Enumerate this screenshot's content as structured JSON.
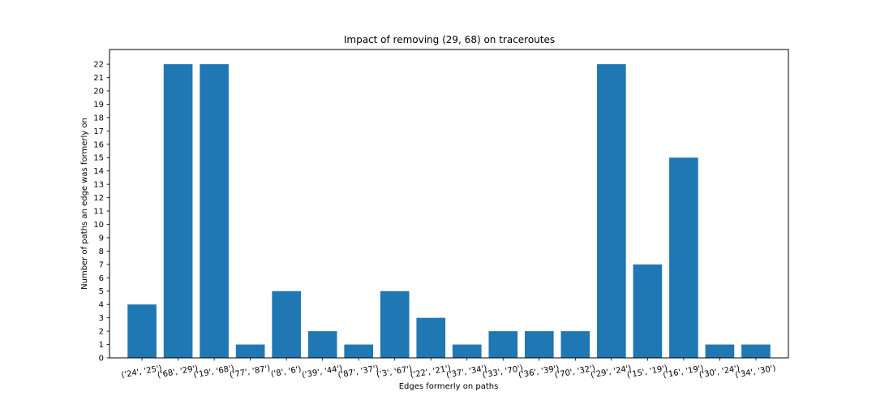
{
  "chart_data": {
    "type": "bar",
    "title": "Impact of removing (29, 68) on traceroutes",
    "xlabel": "Edges formerly on paths",
    "ylabel": "Number of paths an edge was formerly on",
    "categories": [
      "('24', '25')",
      "('68', '29')",
      "('19', '68')",
      "('77', '87')",
      "('8', '6')",
      "('39', '44')",
      "('87', '37')",
      "('3', '67')",
      "('22', '21')",
      "('37', '34')",
      "('33', '70')",
      "('36', '39')",
      "('70', '32')",
      "('29', '24')",
      "('15', '19')",
      "('16', '19')",
      "('30', '24')",
      "('34', '30')"
    ],
    "values": [
      4,
      22,
      22,
      1,
      5,
      2,
      1,
      5,
      3,
      1,
      2,
      2,
      2,
      22,
      7,
      15,
      1,
      1
    ],
    "yticks": [
      0,
      1,
      2,
      3,
      4,
      5,
      6,
      7,
      8,
      9,
      10,
      11,
      12,
      13,
      14,
      15,
      16,
      17,
      18,
      19,
      20,
      21,
      22
    ],
    "ylim": [
      0,
      23.1
    ],
    "grid": false,
    "color": "#1f77b4"
  }
}
